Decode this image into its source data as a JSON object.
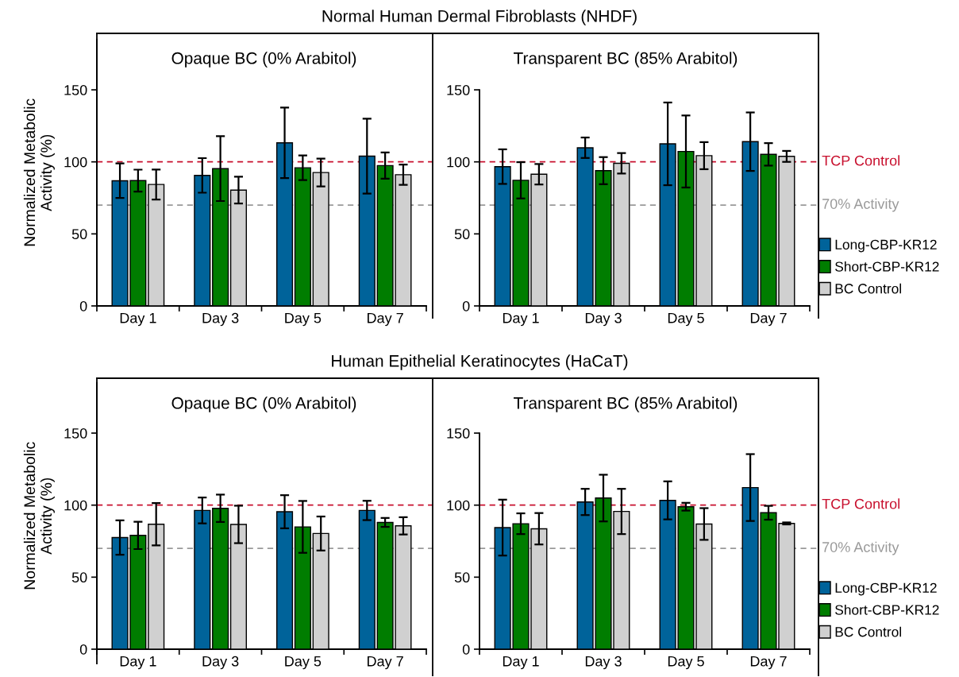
{
  "chart_data": [
    {
      "type": "bar",
      "title": "Normal Human Dermal Fibroblasts (NHDF)",
      "subtitle": "Opaque BC (0% Arabitol)",
      "ylabel": "Normalized Metabolic Activity (%)",
      "categories": [
        "Day 1",
        "Day 3",
        "Day 5",
        "Day 7"
      ],
      "ylim": [
        0,
        185
      ],
      "yticks": [
        0,
        50,
        100,
        150
      ],
      "legend": false,
      "series": [
        {
          "color": "#00639a",
          "values": [
            86.9,
            90.6,
            113.2,
            104
          ],
          "errors": [
            12,
            12,
            24.5,
            26
          ]
        },
        {
          "color": "#007d00",
          "values": [
            87,
            95.3,
            95.9,
            97.4
          ],
          "errors": [
            7.6,
            22.5,
            8.5,
            9.1
          ]
        },
        {
          "color": "#d0d0d0",
          "values": [
            84.3,
            80.4,
            92.6,
            91.1
          ],
          "errors": [
            10.4,
            9.3,
            9.7,
            7
          ]
        }
      ],
      "ref_lines": [
        {
          "axis": "y",
          "value": 100,
          "color": "#c8102e",
          "line_style": "dashed"
        },
        {
          "axis": "y",
          "value": 70,
          "color": "#999999",
          "line_style": "dashed"
        }
      ]
    },
    {
      "type": "bar",
      "subtitle": "Transparent BC (85% Arabitol)",
      "categories": [
        "Day 1",
        "Day 3",
        "Day 5",
        "Day 7"
      ],
      "ylim": [
        0,
        150
      ],
      "yticks": [
        0,
        50,
        100,
        150
      ],
      "legend": "right",
      "series": [
        {
          "name": "Long-CBP-KR12",
          "color": "#00639a",
          "values": [
            96.7,
            109.8,
            112.5,
            114
          ],
          "errors": [
            12,
            7.1,
            28.7,
            20.3
          ]
        },
        {
          "name": "Short-CBP-KR12",
          "color": "#007d00",
          "values": [
            87.2,
            93.9,
            107.2,
            105.2
          ],
          "errors": [
            12.6,
            9.4,
            25,
            7.8
          ]
        },
        {
          "name": "BC Control",
          "color": "#d0d0d0",
          "values": [
            91.4,
            99,
            104.3,
            103.8
          ],
          "errors": [
            7.1,
            7.1,
            9.4,
            3.8
          ]
        }
      ],
      "ref_lines": [
        {
          "axis": "y",
          "value": 100,
          "label": "TCP Control",
          "color": "#c8102e",
          "line_style": "dashed"
        },
        {
          "axis": "y",
          "value": 70,
          "label": "70% Activity",
          "color": "#999999",
          "line_style": "dashed"
        }
      ]
    },
    {
      "type": "bar",
      "title": "Human Epithelial Keratinocytes (HaCaT)",
      "subtitle": "Opaque BC (0% Arabitol)",
      "ylabel": "Normalized Metabolic Activity (%)",
      "categories": [
        "Day 1",
        "Day 3",
        "Day 5",
        "Day 7"
      ],
      "ylim": [
        0,
        185
      ],
      "yticks": [
        0,
        50,
        100,
        150
      ],
      "legend": false,
      "series": [
        {
          "color": "#00639a",
          "values": [
            77.5,
            96.3,
            95.4,
            96.3
          ],
          "errors": [
            11.9,
            9,
            11.5,
            6.7
          ]
        },
        {
          "color": "#007d00",
          "values": [
            79,
            97.8,
            84.9,
            88
          ],
          "errors": [
            9.5,
            9.5,
            18,
            3.1
          ]
        },
        {
          "color": "#d0d0d0",
          "values": [
            86.7,
            86.6,
            80.3,
            85.6
          ],
          "errors": [
            14.7,
            13,
            11.8,
            6
          ]
        }
      ],
      "ref_lines": [
        {
          "axis": "y",
          "value": 100,
          "color": "#c8102e",
          "line_style": "dashed"
        },
        {
          "axis": "y",
          "value": 70,
          "color": "#999999",
          "line_style": "dashed"
        }
      ]
    },
    {
      "type": "bar",
      "subtitle": "Transparent BC (85% Arabitol)",
      "categories": [
        "Day 1",
        "Day 3",
        "Day 5",
        "Day 7"
      ],
      "ylim": [
        0,
        150
      ],
      "yticks": [
        0,
        50,
        100,
        150
      ],
      "legend": "right",
      "series": [
        {
          "name": "Long-CBP-KR12",
          "color": "#00639a",
          "values": [
            84.4,
            102.2,
            103.3,
            112.2
          ],
          "errors": [
            19.4,
            9.1,
            13.2,
            23.2
          ]
        },
        {
          "name": "Short-CBP-KR12",
          "color": "#007d00",
          "values": [
            87.1,
            104.9,
            98.9,
            94.7
          ],
          "errors": [
            7.2,
            16.2,
            2.7,
            4.8
          ]
        },
        {
          "name": "BC Control",
          "color": "#d0d0d0",
          "values": [
            83.6,
            95.6,
            86.9,
            87.3
          ],
          "errors": [
            10.9,
            15.7,
            11,
            0.7
          ]
        }
      ],
      "ref_lines": [
        {
          "axis": "y",
          "value": 100,
          "label": "TCP Control",
          "color": "#c8102e",
          "line_style": "dashed"
        },
        {
          "axis": "y",
          "value": 70,
          "label": "70% Activity",
          "color": "#999999",
          "line_style": "dashed"
        }
      ]
    }
  ]
}
